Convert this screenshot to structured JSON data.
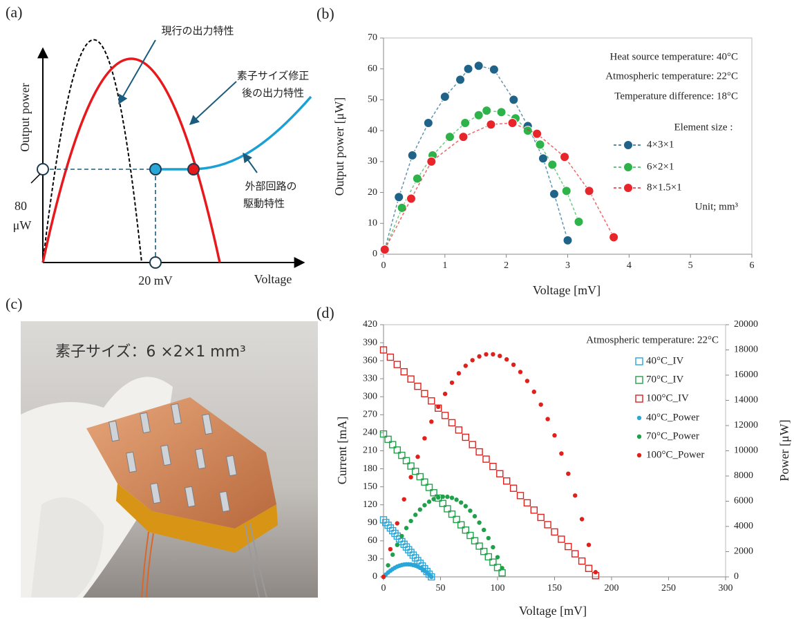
{
  "panel_a": {
    "label": "(a)",
    "y_axis": "Output power",
    "x_axis": "Voltage",
    "current_curve": "現行の出力特性",
    "modified_curve": [
      "素子サイズ修正",
      "後の出力特性"
    ],
    "circuit_curve": [
      "外部回路の",
      "駆動特性"
    ],
    "power_mark": [
      "80",
      "μW"
    ],
    "voltage_mark": "20 mV"
  },
  "panel_c": {
    "label": "(c)",
    "caption": "素子サイズ：6 ×2×1 mm³"
  },
  "chart_data": [
    {
      "type": "line",
      "panel_label": "(b)",
      "x_label": "Voltage [mV]",
      "y_label": "Output power [μW]",
      "annotations": [
        "Heat source temperature: 40°C",
        "Atmospheric temperature: 22°C",
        "Temperature difference: 18°C"
      ],
      "legend_title": "Element size :",
      "unit_note": "Unit; mm³",
      "xlim": [
        0,
        6
      ],
      "xticks": [
        0,
        1,
        2,
        3,
        4,
        5,
        6
      ],
      "ylim": [
        0,
        70
      ],
      "yticks": [
        0,
        10,
        20,
        30,
        40,
        50,
        60,
        70
      ],
      "line_style": "dashed",
      "marker": "circle",
      "series": [
        {
          "name": "4×3×1",
          "color": "#1f6488",
          "x": [
            0.02,
            0.25,
            0.47,
            0.73,
            1.0,
            1.25,
            1.38,
            1.55,
            1.8,
            2.12,
            2.35,
            2.6,
            2.78,
            3.0
          ],
          "values": [
            1.5,
            18.5,
            32,
            42.5,
            51,
            56.5,
            60,
            61,
            59.8,
            50,
            41.5,
            31,
            19.5,
            4.5
          ]
        },
        {
          "name": "6×2×1",
          "color": "#2db34a",
          "x": [
            0.02,
            0.3,
            0.55,
            0.8,
            1.08,
            1.33,
            1.55,
            1.68,
            1.92,
            2.15,
            2.35,
            2.55,
            2.75,
            2.98,
            3.18
          ],
          "values": [
            1.5,
            15,
            24.5,
            32,
            38,
            42.5,
            45,
            46.5,
            46,
            44,
            40,
            35.5,
            29,
            20.5,
            10.5
          ]
        },
        {
          "name": "8×1.5×1",
          "color": "#e8252a",
          "x": [
            0.02,
            0.45,
            0.78,
            1.3,
            1.75,
            2.1,
            2.5,
            2.95,
            3.35,
            3.75
          ],
          "values": [
            1.5,
            18,
            30,
            38,
            42,
            42.5,
            39,
            31.5,
            20.5,
            5.5
          ]
        }
      ]
    },
    {
      "type": "scatter",
      "panel_label": "(d)",
      "x_label": "Voltage [mV]",
      "y_label": "Current [mA]",
      "y2_label": "Power [μW]",
      "annotations": [
        "Atmospheric temperature: 22°C"
      ],
      "xlim": [
        0,
        300
      ],
      "xticks": [
        0,
        50,
        100,
        150,
        200,
        250,
        300
      ],
      "ylim": [
        0,
        420
      ],
      "yticks": [
        0,
        30,
        60,
        90,
        120,
        150,
        180,
        210,
        240,
        270,
        300,
        330,
        360,
        390,
        420
      ],
      "y2lim": [
        0,
        20000
      ],
      "y2ticks": [
        0,
        2000,
        4000,
        6000,
        8000,
        10000,
        12000,
        14000,
        16000,
        18000,
        20000
      ],
      "series": [
        {
          "name": "40°C_IV",
          "color": "#2aa6d8",
          "marker": "square-open",
          "x": [
            0,
            2,
            4,
            6,
            8,
            10,
            12,
            14,
            16,
            18,
            20,
            22,
            24,
            26,
            28,
            30,
            32,
            34,
            36,
            38,
            40,
            42
          ],
          "values": [
            95,
            90.5,
            86.0,
            81.4,
            76.9,
            72.4,
            67.9,
            63.3,
            58.8,
            54.3,
            49.8,
            45.2,
            40.7,
            36.2,
            31.7,
            27.1,
            22.6,
            18.1,
            13.6,
            9.0,
            4.5,
            0
          ]
        },
        {
          "name": "70°C_IV",
          "color": "#21a04b",
          "marker": "square-open",
          "x": [
            0,
            4,
            8,
            12,
            16,
            20,
            24,
            28,
            32,
            36,
            40,
            44,
            48,
            52,
            56,
            60,
            64,
            68,
            72,
            76,
            80,
            84,
            88,
            92,
            96,
            100,
            104
          ],
          "values": [
            238,
            229.1,
            220.2,
            211.3,
            202.4,
            193.5,
            184.6,
            175.7,
            166.8,
            157.9,
            149.0,
            140.1,
            131.2,
            122.3,
            113.4,
            104.5,
            95.6,
            86.7,
            77.9,
            69.0,
            60.1,
            51.2,
            42.3,
            33.4,
            24.5,
            15.6,
            6.7
          ]
        },
        {
          "name": "100°C_IV",
          "color": "#e0201b",
          "marker": "square-open",
          "x": [
            0,
            6,
            12,
            18,
            24,
            30,
            36,
            42,
            48,
            54,
            60,
            66,
            72,
            78,
            84,
            90,
            96,
            102,
            108,
            114,
            120,
            126,
            132,
            138,
            144,
            150,
            156,
            162,
            168,
            174,
            180,
            186
          ],
          "values": [
            378,
            365.9,
            353.7,
            341.6,
            329.5,
            317.4,
            305.2,
            293.1,
            281.0,
            268.8,
            256.7,
            244.6,
            232.5,
            220.3,
            208.2,
            196.1,
            183.9,
            171.8,
            159.7,
            147.6,
            135.4,
            123.3,
            111.2,
            99.0,
            86.9,
            74.8,
            62.7,
            50.5,
            38.4,
            26.3,
            14.1,
            2.0
          ]
        },
        {
          "name": "40°C_Power",
          "color": "#2aa6d8",
          "marker": "circle",
          "axis": "y2",
          "x": [
            0,
            2,
            4,
            6,
            8,
            10,
            12,
            14,
            16,
            18,
            20,
            22,
            24,
            26,
            28,
            30,
            32,
            34,
            36,
            38,
            40,
            42
          ],
          "values": [
            0,
            181,
            344,
            488,
            615,
            724,
            815,
            886,
            941,
            977,
            996,
            994,
            977,
            941,
            888,
            813,
            723,
            615,
            490,
            342,
            180,
            0
          ]
        },
        {
          "name": "70°C_Power",
          "color": "#21a04b",
          "marker": "circle",
          "axis": "y2",
          "x": [
            0,
            4,
            8,
            12,
            16,
            20,
            24,
            28,
            32,
            36,
            40,
            44,
            48,
            52,
            56,
            60,
            64,
            68,
            72,
            76,
            80,
            84,
            88,
            92,
            96,
            100,
            104
          ],
          "values": [
            0,
            916,
            1762,
            2536,
            3238,
            3870,
            4430,
            4920,
            5338,
            5684,
            5960,
            6164,
            6298,
            6360,
            6350,
            6270,
            6118,
            5896,
            5609,
            5244,
            4808,
            4301,
            3722,
            3073,
            2352,
            1560,
            697
          ]
        },
        {
          "name": "100°C_Power",
          "color": "#e0201b",
          "marker": "circle",
          "axis": "y2",
          "x": [
            0,
            6,
            12,
            18,
            24,
            30,
            36,
            42,
            48,
            54,
            60,
            66,
            72,
            78,
            84,
            90,
            96,
            102,
            108,
            114,
            120,
            126,
            132,
            138,
            144,
            150,
            156,
            162,
            168,
            174,
            180,
            186
          ],
          "values": [
            0,
            2195,
            4244,
            6149,
            7908,
            9522,
            10987,
            12310,
            13488,
            14515,
            15402,
            16144,
            16740,
            17183,
            17489,
            17649,
            17654,
            17524,
            17248,
            16826,
            16248,
            15536,
            14678,
            13662,
            12514,
            11220,
            9781,
            8181,
            6451,
            4576,
            2538,
            372
          ]
        }
      ]
    }
  ]
}
